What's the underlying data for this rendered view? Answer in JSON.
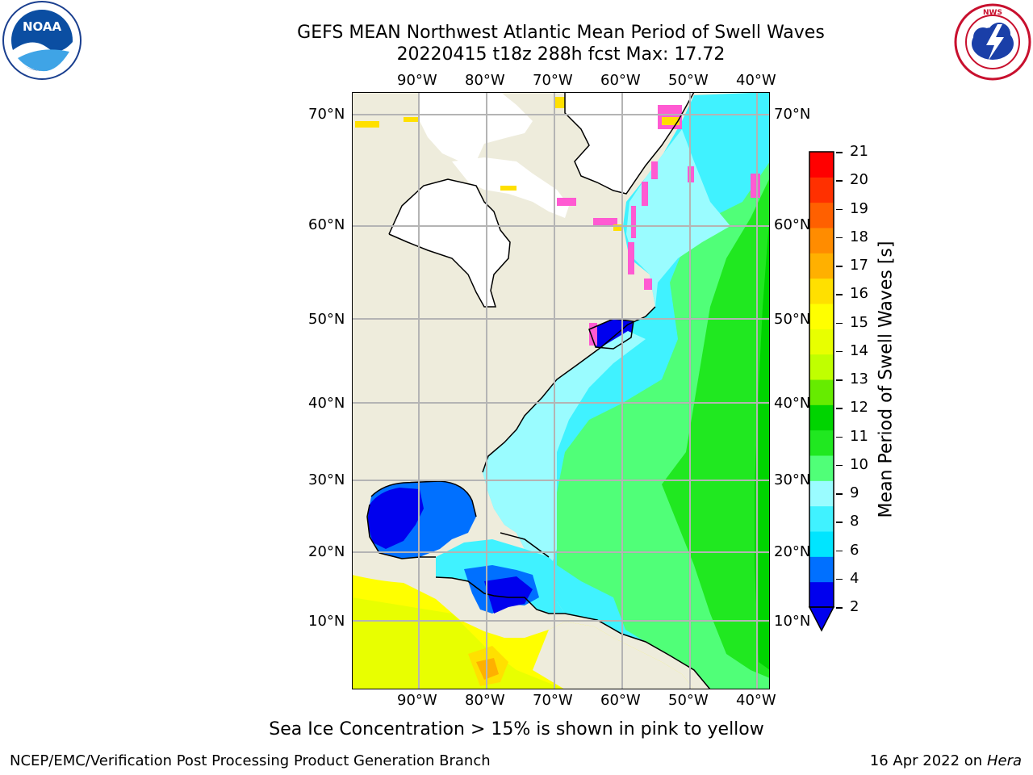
{
  "title": {
    "line1": "GEFS MEAN Northwest Atlantic Mean Period of Swell Waves",
    "line2": "20220415 t18z 288h fcst   Max: 17.72"
  },
  "map": {
    "lon_ticks": [
      "90°W",
      "80°W",
      "70°W",
      "60°W",
      "50°W",
      "40°W"
    ],
    "lat_ticks": [
      "70°N",
      "60°N",
      "50°N",
      "40°N",
      "30°N",
      "20°N",
      "10°N"
    ],
    "colors": {
      "land": "#eeecdc",
      "ice_unresolved": "#ffffff",
      "grid": "#b4b4b4",
      "coast": "#000000"
    }
  },
  "colorbar": {
    "label": "Mean Period of Swell Waves [s]",
    "ticks": [
      "21",
      "20",
      "19",
      "18",
      "17",
      "16",
      "15",
      "14",
      "13",
      "12",
      "11",
      "10",
      "9",
      "8",
      "6",
      "4",
      "2"
    ],
    "bins": [
      "#0000ee",
      "#0070ff",
      "#00e5ff",
      "#40f2ff",
      "#9afcff",
      "#50ff78",
      "#20e820",
      "#00d400",
      "#66ec00",
      "#c0ff00",
      "#e8ff00",
      "#ffff00",
      "#ffe000",
      "#ffb000",
      "#ff8c00",
      "#ff6000",
      "#ff3000",
      "#ff0000"
    ]
  },
  "caption": "Sea Ice Concentration > 15% is shown in pink to yellow",
  "footer": {
    "left": "NCEP/EMC/Verification Post Processing Product Generation Branch",
    "right_prefix": "16 Apr 2022 on ",
    "right_host": "Hera"
  },
  "logos": {
    "left": "NOAA",
    "right": "NATIONAL WEATHER SERVICE"
  }
}
